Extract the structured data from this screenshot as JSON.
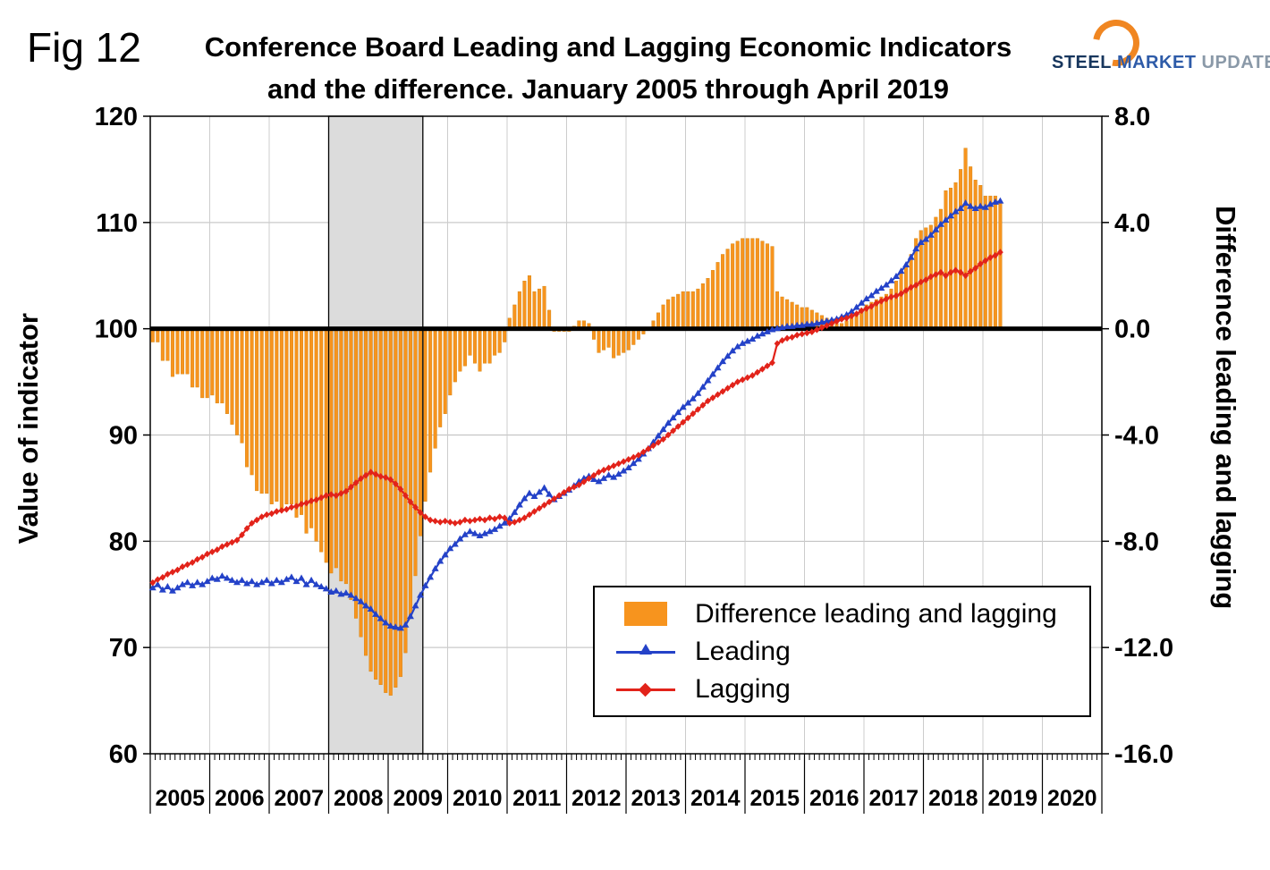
{
  "fig_label": "Fig 12",
  "header": {
    "title_line1": "Conference Board Leading and Lagging Economic Indicators",
    "title_line2": "and the difference. January 2005 through April 2019"
  },
  "logo": {
    "steel": "STEEL",
    "market": "MARKET",
    "update": "UPDATE",
    "accent_color": "#F08621"
  },
  "colors": {
    "baseline": "#000000",
    "gridline": "#bdbdbd",
    "band_fill": "#dcdcdc",
    "plot_border": "#000000"
  },
  "chart_data": {
    "type": "bar",
    "subtype": "bar+line combo, monthly data",
    "title": "Conference Board Leading and Lagging Economic Indicators and the difference. January 2005 through April 2019",
    "x_period_start": "2005-01",
    "x_period_end": "2019-04",
    "x_years": [
      "2005",
      "2006",
      "2007",
      "2008",
      "2009",
      "2010",
      "2011",
      "2012",
      "2013",
      "2014",
      "2015",
      "2016",
      "2017",
      "2018",
      "2019",
      "2020"
    ],
    "left_axis": {
      "title": "Value of indicator",
      "min": 60,
      "max": 120,
      "ticks": [
        120,
        110,
        100,
        90,
        80,
        70,
        60
      ]
    },
    "right_axis": {
      "title": "Difference leading and lagging",
      "min": -16,
      "max": 8,
      "ticks": [
        "8.0",
        "4.0",
        "0.0",
        "-4.0",
        "-8.0",
        "-12.0",
        "-16.0"
      ]
    },
    "baseline_value": 100,
    "grid": true,
    "legend_position": "inside lower right",
    "recession_band": {
      "from_month_index": 36,
      "to_month_index": 55,
      "period": "2008-01 to 2009-07"
    },
    "series": [
      {
        "name": "Difference leading and lagging",
        "type": "bar",
        "axis": "right",
        "color": "#F7941E",
        "values": [
          -0.5,
          -0.5,
          -1.2,
          -1.2,
          -1.8,
          -1.7,
          -1.7,
          -1.7,
          -2.2,
          -2.2,
          -2.6,
          -2.6,
          -2.5,
          -2.8,
          -2.8,
          -3.2,
          -3.6,
          -4.0,
          -4.3,
          -5.2,
          -5.5,
          -6.1,
          -6.2,
          -6.2,
          -6.6,
          -6.5,
          -6.8,
          -6.6,
          -6.6,
          -7.1,
          -7.0,
          -7.7,
          -7.5,
          -8.0,
          -8.4,
          -8.8,
          -9.2,
          -9.0,
          -9.5,
          -9.6,
          -10.2,
          -10.9,
          -11.6,
          -12.3,
          -12.9,
          -13.2,
          -13.4,
          -13.7,
          -13.8,
          -13.5,
          -13.1,
          -12.2,
          -10.8,
          -9.3,
          -7.8,
          -6.5,
          -5.4,
          -4.5,
          -3.7,
          -3.2,
          -2.5,
          -2.0,
          -1.6,
          -1.4,
          -1.0,
          -1.3,
          -1.6,
          -1.3,
          -1.3,
          -1.0,
          -0.9,
          -0.5,
          0.4,
          0.9,
          1.4,
          1.8,
          2.0,
          1.4,
          1.5,
          1.6,
          0.7,
          -0.1,
          -0.1,
          -0.1,
          -0.1,
          0.1,
          0.3,
          0.3,
          0.2,
          -0.4,
          -0.9,
          -0.8,
          -0.7,
          -1.1,
          -1.0,
          -0.9,
          -0.8,
          -0.6,
          -0.4,
          -0.2,
          0.0,
          0.3,
          0.6,
          0.9,
          1.1,
          1.2,
          1.3,
          1.4,
          1.4,
          1.4,
          1.5,
          1.7,
          1.9,
          2.2,
          2.5,
          2.8,
          3.0,
          3.2,
          3.3,
          3.4,
          3.4,
          3.4,
          3.4,
          3.3,
          3.2,
          3.1,
          1.4,
          1.2,
          1.1,
          1.0,
          0.9,
          0.8,
          0.8,
          0.7,
          0.6,
          0.5,
          0.4,
          0.3,
          0.2,
          0.2,
          0.3,
          0.4,
          0.6,
          0.7,
          0.9,
          1.0,
          1.1,
          1.2,
          1.3,
          1.5,
          1.8,
          2.1,
          2.4,
          2.8,
          3.4,
          3.7,
          3.8,
          3.9,
          4.2,
          4.5,
          5.2,
          5.3,
          5.5,
          6.0,
          6.8,
          6.1,
          5.6,
          5.4,
          5.0,
          5.0,
          5.0,
          4.8
        ]
      },
      {
        "name": "Leading",
        "type": "line",
        "marker": "triangle",
        "axis": "left",
        "color": "#2442C8",
        "values": [
          75.6,
          75.9,
          75.4,
          75.7,
          75.3,
          75.6,
          75.9,
          76.1,
          75.8,
          76.1,
          75.9,
          76.2,
          76.5,
          76.4,
          76.7,
          76.5,
          76.3,
          76.1,
          76.3,
          76.0,
          76.2,
          75.9,
          76.1,
          76.3,
          76.0,
          76.3,
          76.1,
          76.4,
          76.6,
          76.2,
          76.5,
          75.9,
          76.3,
          75.9,
          75.7,
          75.5,
          75.2,
          75.3,
          75.0,
          75.1,
          74.9,
          74.6,
          74.3,
          73.9,
          73.6,
          73.1,
          72.7,
          72.3,
          72.0,
          71.9,
          71.8,
          72.1,
          72.9,
          73.9,
          74.9,
          75.8,
          76.6,
          77.4,
          78.1,
          78.7,
          79.3,
          79.7,
          80.2,
          80.6,
          80.9,
          80.7,
          80.5,
          80.7,
          80.9,
          81.1,
          81.4,
          81.7,
          82.1,
          82.7,
          83.4,
          84.0,
          84.5,
          84.2,
          84.6,
          85.0,
          84.4,
          83.9,
          84.2,
          84.5,
          84.8,
          85.2,
          85.6,
          85.9,
          86.1,
          85.8,
          85.6,
          85.9,
          86.2,
          86.0,
          86.3,
          86.6,
          86.9,
          87.3,
          87.7,
          88.2,
          88.7,
          89.3,
          89.9,
          90.5,
          91.1,
          91.6,
          92.1,
          92.6,
          93.0,
          93.4,
          93.9,
          94.5,
          95.1,
          95.7,
          96.3,
          96.9,
          97.4,
          97.9,
          98.3,
          98.6,
          98.8,
          99.0,
          99.3,
          99.5,
          99.7,
          99.9,
          100.0,
          100.1,
          100.2,
          100.2,
          100.3,
          100.3,
          100.4,
          100.4,
          100.5,
          100.6,
          100.7,
          100.8,
          100.9,
          101.1,
          101.3,
          101.6,
          102.0,
          102.4,
          102.8,
          103.1,
          103.5,
          103.8,
          104.1,
          104.5,
          104.9,
          105.4,
          106.0,
          106.7,
          107.5,
          108.1,
          108.4,
          108.8,
          109.3,
          109.8,
          110.2,
          110.6,
          111.0,
          111.3,
          111.8,
          111.5,
          111.3,
          111.5,
          111.4,
          111.7,
          111.9,
          112.0
        ]
      },
      {
        "name": "Lagging",
        "type": "line",
        "marker": "diamond",
        "axis": "left",
        "color": "#E2231A",
        "values": [
          76.1,
          76.4,
          76.6,
          76.9,
          77.1,
          77.3,
          77.6,
          77.8,
          78.0,
          78.3,
          78.5,
          78.8,
          79.0,
          79.2,
          79.5,
          79.7,
          79.9,
          80.1,
          80.6,
          81.2,
          81.7,
          82.0,
          82.3,
          82.5,
          82.6,
          82.8,
          82.9,
          83.0,
          83.2,
          83.3,
          83.5,
          83.6,
          83.8,
          83.9,
          84.1,
          84.3,
          84.4,
          84.3,
          84.5,
          84.7,
          85.1,
          85.5,
          85.9,
          86.2,
          86.5,
          86.3,
          86.1,
          86.0,
          85.8,
          85.4,
          84.9,
          84.3,
          83.7,
          83.2,
          82.7,
          82.3,
          82.0,
          81.9,
          81.8,
          81.9,
          81.8,
          81.7,
          81.8,
          82.0,
          81.9,
          82.0,
          82.1,
          82.0,
          82.2,
          82.1,
          82.3,
          82.2,
          81.7,
          81.8,
          82.0,
          82.2,
          82.5,
          82.8,
          83.1,
          83.4,
          83.7,
          84.0,
          84.3,
          84.6,
          84.9,
          85.1,
          85.3,
          85.6,
          85.9,
          86.2,
          86.5,
          86.7,
          86.9,
          87.1,
          87.3,
          87.5,
          87.7,
          87.9,
          88.1,
          88.4,
          88.7,
          89.0,
          89.3,
          89.6,
          90.0,
          90.4,
          90.8,
          91.2,
          91.6,
          92.0,
          92.4,
          92.8,
          93.2,
          93.5,
          93.8,
          94.1,
          94.4,
          94.7,
          95.0,
          95.2,
          95.4,
          95.6,
          95.9,
          96.2,
          96.5,
          96.8,
          98.6,
          98.9,
          99.1,
          99.2,
          99.4,
          99.5,
          99.6,
          99.7,
          99.9,
          100.1,
          100.3,
          100.5,
          100.7,
          100.9,
          101.0,
          101.2,
          101.4,
          101.7,
          101.9,
          102.1,
          102.4,
          102.6,
          102.8,
          103.0,
          103.1,
          103.3,
          103.6,
          103.9,
          104.1,
          104.4,
          104.6,
          104.9,
          105.1,
          105.3,
          105.0,
          105.3,
          105.5,
          105.3,
          105.0,
          105.4,
          105.7,
          106.1,
          106.4,
          106.7,
          106.9,
          107.2
        ]
      }
    ]
  }
}
